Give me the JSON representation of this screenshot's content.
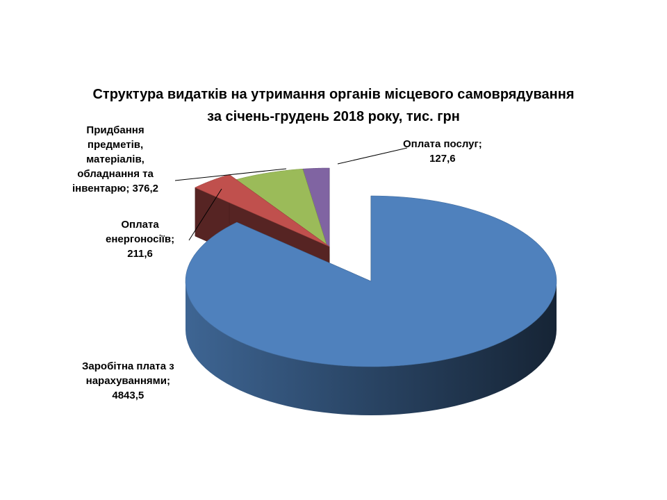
{
  "chart_data": {
    "type": "pie",
    "style": "3d-exploded",
    "title_lines": [
      "Структура видатків на утримання органів місцевого самоврядування",
      "за січень-грудень 2018 року, тис. грн"
    ],
    "slices": [
      {
        "name": "Заробітна плата з нарахуваннями",
        "value": 4843.5,
        "color": "#4F81BD",
        "label_lines": [
          "Заробітна плата з",
          "нарахуваннями;",
          "4843,5"
        ]
      },
      {
        "name": "Оплата енергоносіїв",
        "value": 211.6,
        "color": "#C0504D",
        "label_lines": [
          "Оплата",
          "енергоносіїв;",
          "211,6"
        ]
      },
      {
        "name": "Придбання предметів, матеріалів, обладнання та інвентарю",
        "value": 376.2,
        "color": "#9BBB59",
        "label_lines": [
          "Придбання",
          "предметів,",
          "матеріалів,",
          "обладнання та",
          "інвентарю; 376,2"
        ]
      },
      {
        "name": "Оплата послуг",
        "value": 127.6,
        "color": "#8064A2",
        "label_lines": [
          "Оплата послуг;",
          "127,6"
        ]
      }
    ]
  }
}
